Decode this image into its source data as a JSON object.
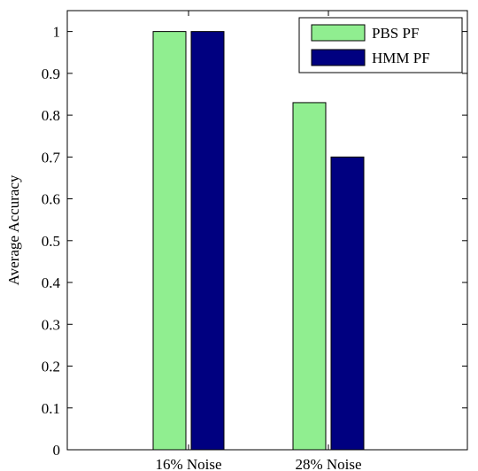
{
  "chart_data": {
    "type": "bar",
    "title": "",
    "xlabel": "",
    "ylabel": "Average Accuracy",
    "categories": [
      "16% Noise",
      "28% Noise"
    ],
    "series": [
      {
        "name": "PBS PF",
        "color": "#90ee90",
        "values": [
          1.0,
          0.83
        ]
      },
      {
        "name": "HMM PF",
        "color": "#000080",
        "values": [
          1.0,
          0.7
        ]
      }
    ],
    "ylim": [
      0,
      1.05
    ],
    "yticks": [
      "0",
      "0.1",
      "0.2",
      "0.3",
      "0.4",
      "0.5",
      "0.6",
      "0.7",
      "0.8",
      "0.9",
      "1"
    ],
    "grid": false,
    "legend_position": "top-right"
  }
}
